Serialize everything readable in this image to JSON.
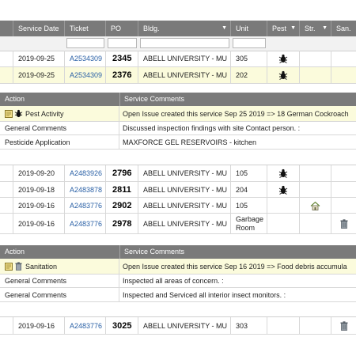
{
  "columns": [
    "Service Date",
    "Ticket",
    "PO",
    "Bldg.",
    "Unit",
    "Pest",
    "Str.",
    "San."
  ],
  "group1_rows": [
    {
      "date": "2019-09-25",
      "ticket": "A2534309",
      "po": "2345",
      "bldg": "ABELL UNIVERSITY - MU",
      "unit": "305",
      "pest": true,
      "highlight": false
    },
    {
      "date": "2019-09-25",
      "ticket": "A2534309",
      "po": "2376",
      "bldg": "ABELL UNIVERSITY - MU",
      "unit": "202",
      "pest": true,
      "highlight": true
    }
  ],
  "detail1": {
    "header_action": "Action",
    "header_comments": "Service Comments",
    "rows": [
      {
        "action": "Pest Activity",
        "comment": "Open Issue created this service Sep 25 2019 => 18 German Cockroach"
      },
      {
        "action": "General Comments",
        "comment": "Discussed inspection findings with site Contact person. :"
      },
      {
        "action": "Pesticide Application",
        "comment": "MAXFORCE GEL RESERVOIRS - kitchen"
      }
    ]
  },
  "group2_rows": [
    {
      "date": "2019-09-20",
      "ticket": "A2483926",
      "po": "2796",
      "bldg": "ABELL UNIVERSITY - MU",
      "unit": "105",
      "icon": "bug"
    },
    {
      "date": "2019-09-18",
      "ticket": "A2483878",
      "po": "2811",
      "bldg": "ABELL UNIVERSITY - MU",
      "unit": "204",
      "icon": "bug"
    },
    {
      "date": "2019-09-16",
      "ticket": "A2483776",
      "po": "2902",
      "bldg": "ABELL UNIVERSITY - MU",
      "unit": "105",
      "icon": "house"
    },
    {
      "date": "2019-09-16",
      "ticket": "A2483776",
      "po": "2978",
      "bldg": "ABELL UNIVERSITY - MU",
      "unit": "Garbage Room",
      "icon": "trash"
    }
  ],
  "detail2": {
    "header_action": "Action",
    "header_comments": "Service Comments",
    "rows": [
      {
        "action": "Sanitation",
        "comment": "Open Issue created this service Sep 16 2019 => Food debris accumula"
      },
      {
        "action": "General Comments",
        "comment": "Inspected all areas of concern. :"
      },
      {
        "action": "General Comments",
        "comment": "Inspected and Serviced all interior insect monitors. :"
      }
    ]
  },
  "group3_rows": [
    {
      "date": "2019-09-16",
      "ticket": "A2483776",
      "po": "3025",
      "bldg": "ABELL UNIVERSITY - MU",
      "unit": "303",
      "icon": "trash"
    }
  ],
  "colors": {
    "header": "#7a7a7a",
    "highlight": "#fbfbdc",
    "link": "#2b61a6"
  }
}
